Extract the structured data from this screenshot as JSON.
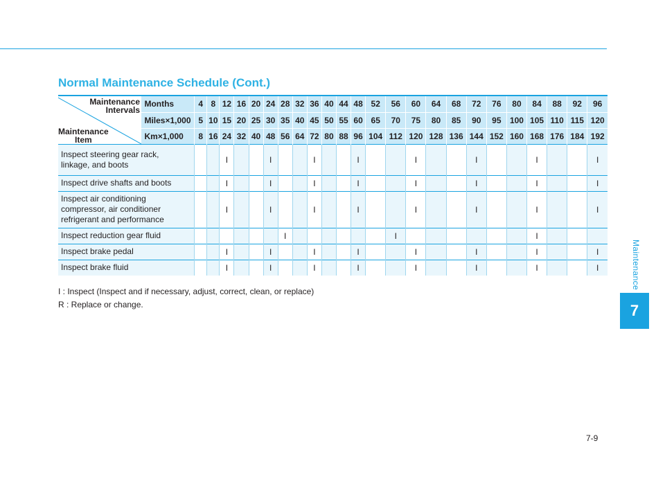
{
  "side_tab": {
    "label": "Maintenance",
    "chapter": "7"
  },
  "section_title": "Normal Maintenance Schedule (Cont.)",
  "table": {
    "corner_top": [
      "Maintenance",
      "Intervals"
    ],
    "corner_bottom": [
      "Maintenance",
      "Item"
    ],
    "header_rows": [
      {
        "label": "Months",
        "values": [
          "4",
          "8",
          "12",
          "16",
          "20",
          "24",
          "28",
          "32",
          "36",
          "40",
          "44",
          "48",
          "52",
          "56",
          "60",
          "64",
          "68",
          "72",
          "76",
          "80",
          "84",
          "88",
          "92",
          "96"
        ]
      },
      {
        "label": "Miles×1,000",
        "values": [
          "5",
          "10",
          "15",
          "20",
          "25",
          "30",
          "35",
          "40",
          "45",
          "50",
          "55",
          "60",
          "65",
          "70",
          "75",
          "80",
          "85",
          "90",
          "95",
          "100",
          "105",
          "110",
          "115",
          "120"
        ]
      },
      {
        "label": "Km×1,000",
        "values": [
          "8",
          "16",
          "24",
          "32",
          "40",
          "48",
          "56",
          "64",
          "72",
          "80",
          "88",
          "96",
          "104",
          "112",
          "120",
          "128",
          "136",
          "144",
          "152",
          "160",
          "168",
          "176",
          "184",
          "192"
        ]
      }
    ],
    "items": [
      {
        "lines": [
          "Inspect steering gear rack,",
          "linkage, and boots"
        ],
        "marks": [
          "",
          "",
          "I",
          "",
          "",
          "I",
          "",
          "",
          "I",
          "",
          "",
          "I",
          "",
          "",
          "I",
          "",
          "",
          "I",
          "",
          "",
          "I",
          "",
          "",
          "I"
        ]
      },
      {
        "lines": [
          "Inspect drive shafts and boots"
        ],
        "marks": [
          "",
          "",
          "I",
          "",
          "",
          "I",
          "",
          "",
          "I",
          "",
          "",
          "I",
          "",
          "",
          "I",
          "",
          "",
          "I",
          "",
          "",
          "I",
          "",
          "",
          "I"
        ]
      },
      {
        "lines": [
          "Inspect air conditioning",
          "compressor, air conditioner",
          "refrigerant and performance"
        ],
        "marks": [
          "",
          "",
          "I",
          "",
          "",
          "I",
          "",
          "",
          "I",
          "",
          "",
          "I",
          "",
          "",
          "I",
          "",
          "",
          "I",
          "",
          "",
          "I",
          "",
          "",
          "I"
        ]
      },
      {
        "lines": [
          "Inspect reduction gear fluid"
        ],
        "marks": [
          "",
          "",
          "",
          "",
          "",
          "",
          "I",
          "",
          "",
          "",
          "",
          "",
          "",
          "I",
          "",
          "",
          "",
          "",
          "",
          "",
          "I",
          "",
          "",
          ""
        ]
      },
      {
        "lines": [
          "Inspect brake pedal"
        ],
        "marks": [
          "",
          "",
          "I",
          "",
          "",
          "I",
          "",
          "",
          "I",
          "",
          "",
          "I",
          "",
          "",
          "I",
          "",
          "",
          "I",
          "",
          "",
          "I",
          "",
          "",
          "I"
        ]
      },
      {
        "lines": [
          "Inspect brake fluid"
        ],
        "marks": [
          "",
          "",
          "I",
          "",
          "",
          "I",
          "",
          "",
          "I",
          "",
          "",
          "I",
          "",
          "",
          "I",
          "",
          "",
          "I",
          "",
          "",
          "I",
          "",
          "",
          "I"
        ]
      }
    ]
  },
  "legend": [
    "I   : Inspect (Inspect and if necessary, adjust, correct, clean, or replace)",
    "R : Replace or change."
  ],
  "page_number": "7-9"
}
